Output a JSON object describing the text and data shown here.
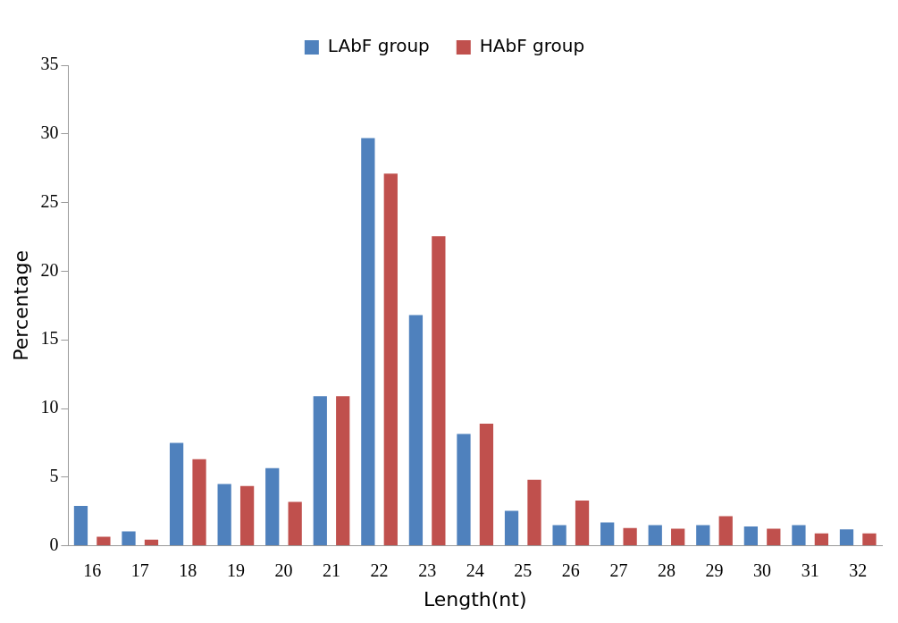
{
  "chart_data": {
    "type": "bar",
    "xlabel": "Length(nt)",
    "ylabel": "Percentage",
    "categories": [
      "16",
      "17",
      "18",
      "19",
      "20",
      "21",
      "22",
      "23",
      "24",
      "25",
      "26",
      "27",
      "28",
      "29",
      "30",
      "31",
      "32"
    ],
    "series": [
      {
        "name": "LAbF group",
        "color": "#4f81bd",
        "values": [
          2.9,
          1.05,
          7.5,
          4.5,
          5.65,
          10.9,
          29.7,
          16.8,
          8.15,
          2.55,
          1.5,
          1.7,
          1.5,
          1.5,
          1.4,
          1.5,
          1.2
        ]
      },
      {
        "name": "HAbF group",
        "color": "#c0504d",
        "values": [
          0.65,
          0.45,
          6.3,
          4.35,
          3.2,
          10.9,
          27.1,
          22.55,
          8.9,
          4.8,
          3.3,
          1.3,
          1.25,
          2.15,
          1.25,
          0.9,
          0.9
        ]
      }
    ],
    "ylim": [
      0,
      35
    ],
    "yticks": [
      0,
      5,
      10,
      15,
      20,
      25,
      30,
      35
    ],
    "grid": false,
    "legend": "top"
  }
}
